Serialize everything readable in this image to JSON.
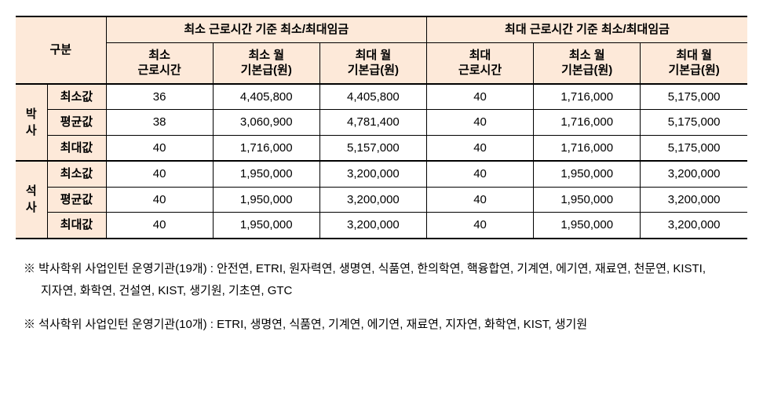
{
  "table": {
    "header_group_label": "구분",
    "header_group1": "최소 근로시간 기준 최소/최대임금",
    "header_group2": "최대 근로시간 기준 최소/최대임금",
    "h_min_hours": "최소\n근로시간",
    "h_max_hours": "최대\n근로시간",
    "h_min_wage": "최소 월\n기본급(원)",
    "h_max_wage": "최대 월\n기본급(원)",
    "cat_phd": "박\n사",
    "cat_ms": "석\n사",
    "row_min": "최소값",
    "row_avg": "평균값",
    "row_max": "최대값",
    "phd_min": {
      "min_h": "36",
      "min_w": "4,405,800",
      "max_w": "4,405,800",
      "max_h": "40",
      "min_w2": "1,716,000",
      "max_w2": "5,175,000"
    },
    "phd_avg": {
      "min_h": "38",
      "min_w": "3,060,900",
      "max_w": "4,781,400",
      "max_h": "40",
      "min_w2": "1,716,000",
      "max_w2": "5,175,000"
    },
    "phd_max": {
      "min_h": "40",
      "min_w": "1,716,000",
      "max_w": "5,157,000",
      "max_h": "40",
      "min_w2": "1,716,000",
      "max_w2": "5,175,000"
    },
    "ms_min": {
      "min_h": "40",
      "min_w": "1,950,000",
      "max_w": "3,200,000",
      "max_h": "40",
      "min_w2": "1,950,000",
      "max_w2": "3,200,000"
    },
    "ms_avg": {
      "min_h": "40",
      "min_w": "1,950,000",
      "max_w": "3,200,000",
      "max_h": "40",
      "min_w2": "1,950,000",
      "max_w2": "3,200,000"
    },
    "ms_max": {
      "min_h": "40",
      "min_w": "1,950,000",
      "max_w": "3,200,000",
      "max_h": "40",
      "min_w2": "1,950,000",
      "max_w2": "3,200,000"
    }
  },
  "notes": {
    "note1": "※ 박사학위 사업인턴 운영기관(19개) : 안전연, ETRI, 원자력연, 생명연, 식품연, 한의학연, 핵융합연, 기계연, 에기연, 재료연, 천문연, KISTI, 지자연, 화학연, 건설연, KIST, 생기원, 기초연, GTC",
    "note2": "※ 석사학위 사업인턴 운영기관(10개) : ETRI, 생명연, 식품연, 기계연, 에기연, 재료연, 지자연, 화학연, KIST, 생기원"
  },
  "colors": {
    "header_bg": "#fde9d9",
    "border": "#000000",
    "bg": "#ffffff",
    "text": "#000000"
  }
}
